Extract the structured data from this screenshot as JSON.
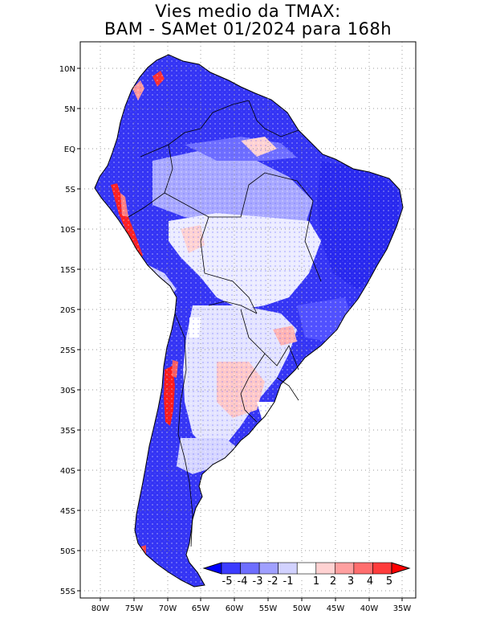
{
  "title": {
    "line1": "Vies medio da TMAX:",
    "line2": "BAM - SAMet 01/2024  para 168h"
  },
  "map": {
    "lat_labels": [
      "10N",
      "5N",
      "EQ",
      "5S",
      "10S",
      "15S",
      "20S",
      "25S",
      "30S",
      "35S",
      "40S",
      "45S",
      "50S",
      "55S"
    ],
    "lon_labels": [
      "80W",
      "75W",
      "70W",
      "65W",
      "60W",
      "55W",
      "50W",
      "45W",
      "40W",
      "35W"
    ],
    "extent": {
      "lon_min": -84,
      "lon_max": -34,
      "lat_min": -56,
      "lat_max": 13
    }
  },
  "colorbar": {
    "labels": [
      "-5",
      "-4",
      "-3",
      "-2",
      "-1",
      "1",
      "2",
      "3",
      "4",
      "5"
    ],
    "colors": [
      "#0000ff",
      "#3c3cff",
      "#6e6eff",
      "#a0a0ff",
      "#d2d2ff",
      "#ffffff",
      "#ffd2d2",
      "#ffa0a0",
      "#ff6e6e",
      "#ff3c3c",
      "#ff0000"
    ]
  }
}
